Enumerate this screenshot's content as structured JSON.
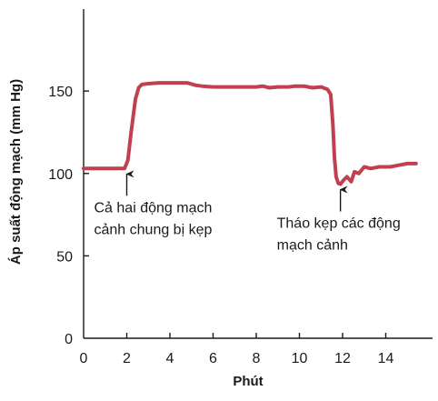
{
  "chart_data": {
    "type": "line",
    "xlabel": "Phút",
    "ylabel": "Áp suất động mạch (mm Hg)",
    "xlim": [
      0,
      15.8
    ],
    "ylim": [
      0,
      200
    ],
    "xticks": [
      0,
      2,
      4,
      6,
      8,
      10,
      12,
      14
    ],
    "yticks": [
      0,
      50,
      100,
      150
    ],
    "grid": false,
    "line_color": "#c0404f",
    "series": [
      {
        "x": [
          0,
          1.0,
          1.9,
          2.05,
          2.2,
          2.4,
          2.55,
          2.7,
          3.0,
          3.5,
          4.0,
          4.5,
          4.8,
          5.2,
          5.5,
          6.0,
          7.0,
          8.0,
          8.3,
          8.6,
          9.0,
          9.5,
          9.8,
          10.2,
          10.6,
          11.0,
          11.3,
          11.45,
          11.55,
          11.62,
          11.7,
          11.8,
          11.9,
          12.05,
          12.2,
          12.4,
          12.55,
          12.75,
          13.0,
          13.3,
          13.7,
          14.2,
          14.6,
          15.0,
          15.4
        ],
        "y": [
          103,
          103,
          103,
          108,
          125,
          145,
          152,
          154,
          154.5,
          155,
          155,
          155,
          155,
          153.5,
          153,
          152.5,
          152.5,
          152.5,
          153,
          152,
          152.5,
          152.5,
          153,
          153,
          152,
          152.5,
          151,
          148,
          130,
          110,
          98,
          94,
          93.5,
          96,
          98,
          95,
          101,
          100,
          104,
          103,
          104,
          104,
          105,
          106,
          106
        ]
      }
    ],
    "annotations": [
      {
        "lines": [
          "Cả hai động mạch",
          "cảnh chung bị kẹp"
        ],
        "x": 2.0,
        "y": 103
      },
      {
        "lines": [
          "Tháo kẹp các động",
          "mạch cảnh"
        ],
        "x": 11.9,
        "y": 93.5
      }
    ]
  }
}
